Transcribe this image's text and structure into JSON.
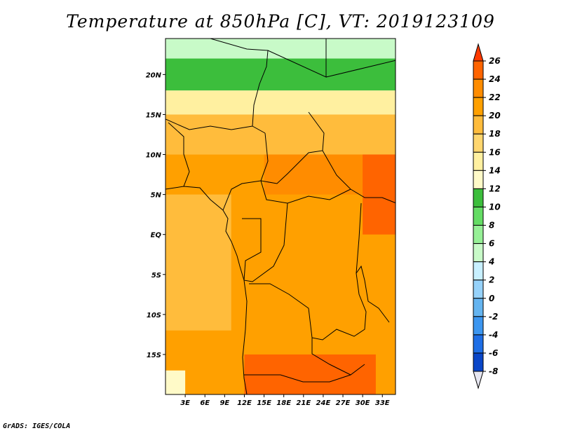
{
  "title": "Temperature at 850hPa [C], VT: 2019123109",
  "footer": "GrADS: IGES/COLA",
  "chart_data": {
    "type": "heatmap",
    "title": "Temperature at 850hPa [C], VT: 2019123109",
    "variable": "Temperature at 850hPa",
    "units": "C",
    "valid_time": "2019123109",
    "xlim": [
      0,
      35
    ],
    "ylim": [
      -20,
      24.5
    ],
    "x_ticks": [
      {
        "value": 3,
        "label": "3E"
      },
      {
        "value": 6,
        "label": "6E"
      },
      {
        "value": 9,
        "label": "9E"
      },
      {
        "value": 12,
        "label": "12E"
      },
      {
        "value": 15,
        "label": "15E"
      },
      {
        "value": 18,
        "label": "18E"
      },
      {
        "value": 21,
        "label": "21E"
      },
      {
        "value": 24,
        "label": "24E"
      },
      {
        "value": 27,
        "label": "27E"
      },
      {
        "value": 30,
        "label": "30E"
      },
      {
        "value": 33,
        "label": "33E"
      }
    ],
    "y_ticks": [
      {
        "value": 20,
        "label": "20N"
      },
      {
        "value": 15,
        "label": "15N"
      },
      {
        "value": 10,
        "label": "10N"
      },
      {
        "value": 5,
        "label": "5N"
      },
      {
        "value": 0,
        "label": "EQ"
      },
      {
        "value": -5,
        "label": "5S"
      },
      {
        "value": -10,
        "label": "10S"
      },
      {
        "value": -15,
        "label": "15S"
      }
    ],
    "colorbar": {
      "levels": [
        26,
        24,
        22,
        20,
        18,
        16,
        14,
        12,
        10,
        8,
        6,
        4,
        2,
        0,
        -2,
        -4,
        -6,
        -8
      ],
      "colors": [
        "#ff3a00",
        "#ff6400",
        "#ff8c00",
        "#ffa000",
        "#ffbc3c",
        "#ffd66e",
        "#fff0a0",
        "#fffac8",
        "#3cbe3c",
        "#64dc64",
        "#96f096",
        "#c8fac8",
        "#c8f0ff",
        "#96d2fa",
        "#64b4f0",
        "#3c96f0",
        "#1e6ee6",
        "#0a46c8",
        "#00228c"
      ]
    },
    "field": [
      {
        "lon": [
          0,
          35
        ],
        "lat": [
          22,
          24.5
        ],
        "value": 5
      },
      {
        "lon": [
          0,
          35
        ],
        "lat": [
          18,
          22
        ],
        "value": 11
      },
      {
        "lon": [
          0,
          35
        ],
        "lat": [
          15,
          18
        ],
        "value": 15
      },
      {
        "lon": [
          0,
          35
        ],
        "lat": [
          10,
          15
        ],
        "value": 19
      },
      {
        "lon": [
          0,
          35
        ],
        "lat": [
          -20,
          10
        ],
        "value": 21
      },
      {
        "lon": [
          15,
          35
        ],
        "lat": [
          5,
          10
        ],
        "value": 23
      },
      {
        "lon": [
          30,
          35
        ],
        "lat": [
          0,
          10
        ],
        "value": 24
      },
      {
        "lon": [
          0,
          10
        ],
        "lat": [
          -12,
          5
        ],
        "value": 18
      },
      {
        "lon": [
          12,
          32
        ],
        "lat": [
          -20,
          -15
        ],
        "value": 24
      },
      {
        "lon": [
          0,
          3
        ],
        "lat": [
          -20,
          -17
        ],
        "value": 12
      }
    ]
  }
}
